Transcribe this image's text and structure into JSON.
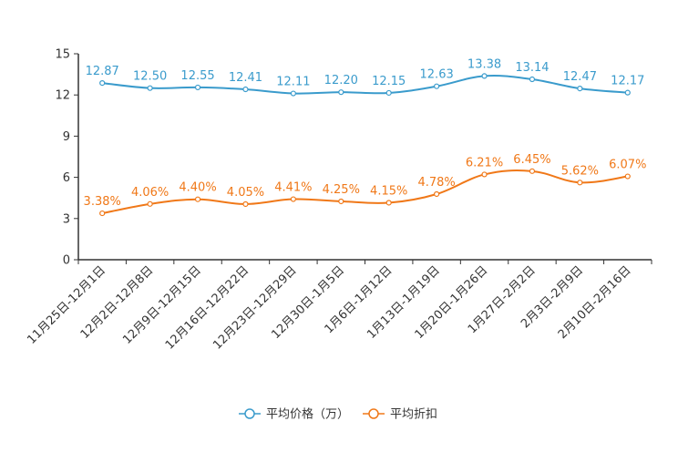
{
  "chart_data": {
    "type": "line",
    "categories": [
      "11月25日-12月1日",
      "12月2日-12月8日",
      "12月9日-12月15日",
      "12月16日-12月22日",
      "12月23日-12月29日",
      "12月30日-1月5日",
      "1月6日-1月12日",
      "1月13日-1月19日",
      "1月20日-1月26日",
      "1月27日-2月2日",
      "2月3日-2月9日",
      "2月10日-2月16日"
    ],
    "series": [
      {
        "name": "平均价格（万）",
        "color": "#3a9bcc",
        "values": [
          12.87,
          12.5,
          12.55,
          12.41,
          12.11,
          12.2,
          12.15,
          12.63,
          13.38,
          13.14,
          12.47,
          12.17
        ],
        "labels": [
          "12.87",
          "12.50",
          "12.55",
          "12.41",
          "12.11",
          "12.20",
          "12.15",
          "12.63",
          "13.38",
          "13.14",
          "12.47",
          "12.17"
        ]
      },
      {
        "name": "平均折扣",
        "color": "#f07818",
        "values": [
          3.38,
          4.06,
          4.4,
          4.05,
          4.41,
          4.25,
          4.15,
          4.78,
          6.21,
          6.45,
          5.62,
          6.07
        ],
        "labels": [
          "3.38%",
          "4.06%",
          "4.40%",
          "4.05%",
          "4.41%",
          "4.25%",
          "4.15%",
          "4.78%",
          "6.21%",
          "6.45%",
          "5.62%",
          "6.07%"
        ]
      }
    ],
    "ylim": [
      0,
      15
    ],
    "yticks": [
      "0",
      "3",
      "6",
      "9",
      "12",
      "15"
    ],
    "legend_position": "bottom-center"
  }
}
